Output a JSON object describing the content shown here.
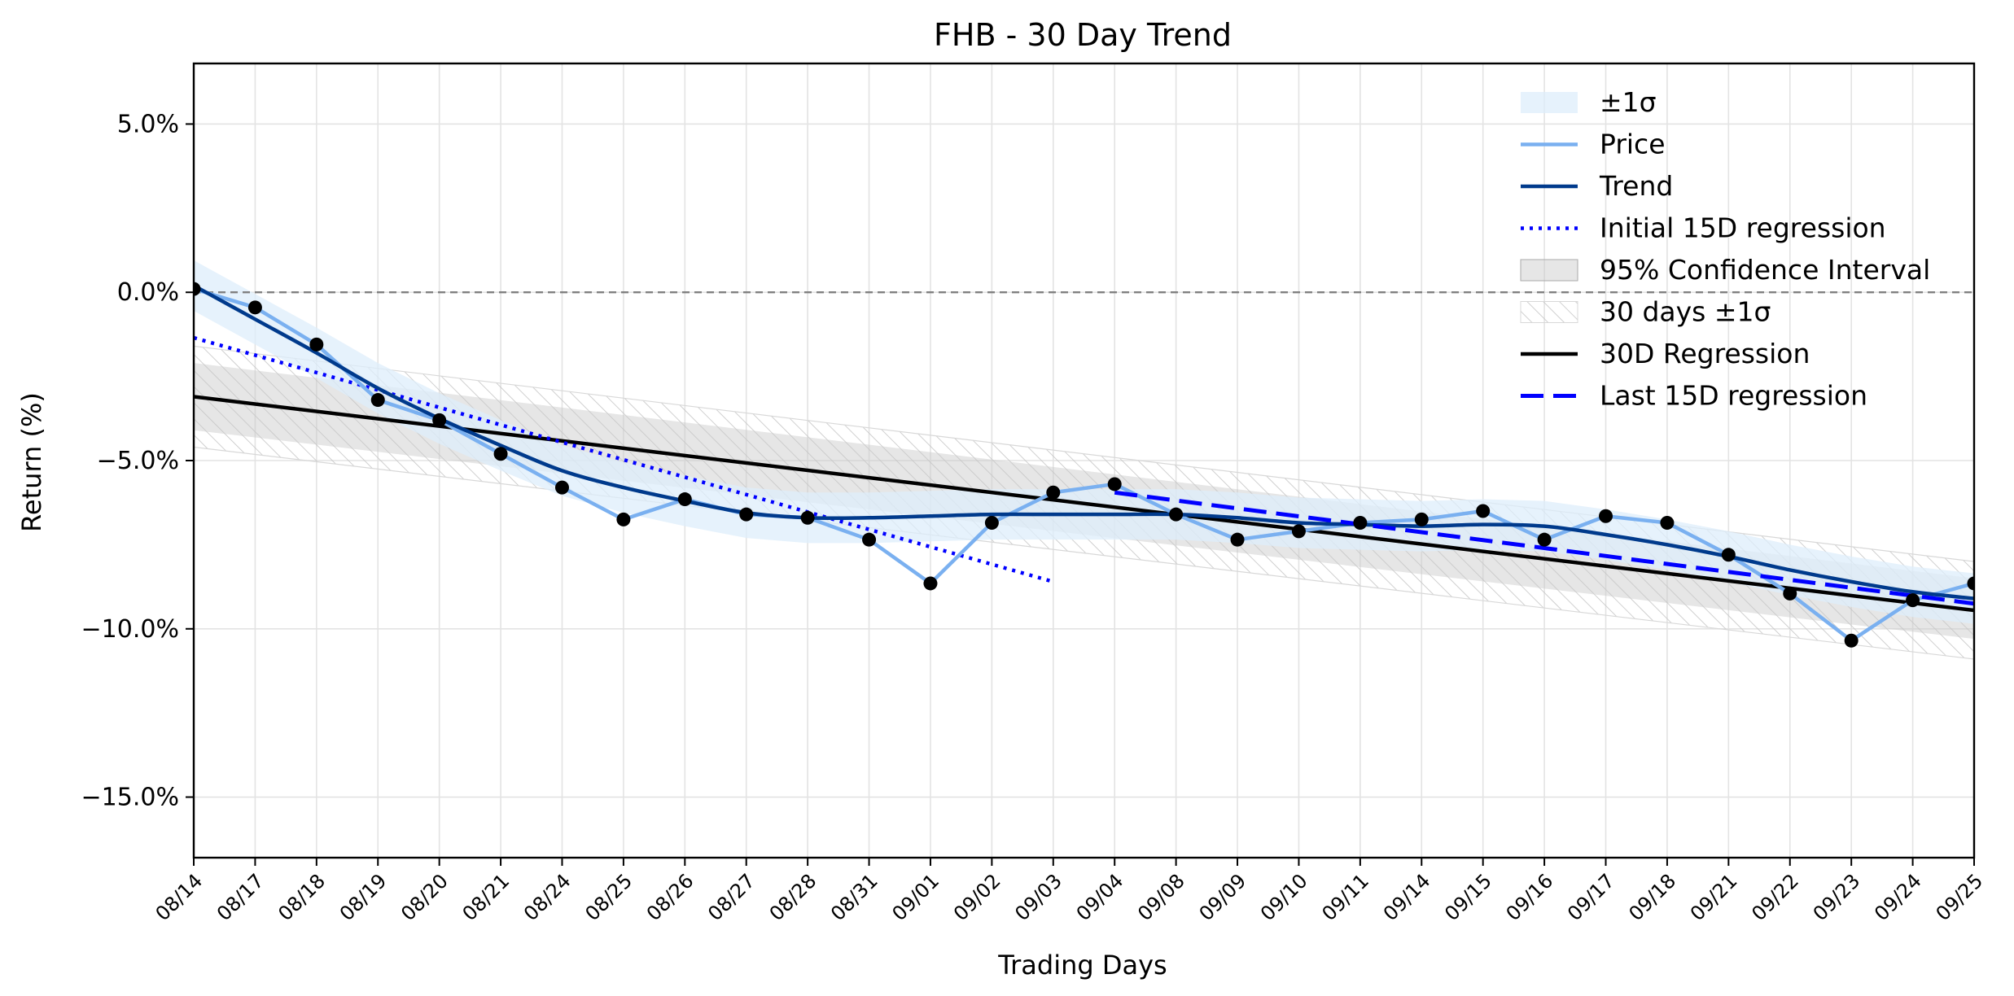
{
  "chart_data": {
    "type": "line",
    "title": "FHB - 30 Day Trend",
    "xlabel": "Trading Days",
    "ylabel": "Return (%)",
    "ylim": [
      -16.8,
      6.8
    ],
    "y_ticks": [
      5,
      0,
      -5,
      -10,
      -15
    ],
    "y_tick_labels": [
      "5.0%",
      "0.0%",
      "−5.0%",
      "−10.0%",
      "−15.0%"
    ],
    "grid": true,
    "legend_position": "top-right",
    "categories": [
      "08/14",
      "08/17",
      "08/18",
      "08/19",
      "08/20",
      "08/21",
      "08/24",
      "08/25",
      "08/26",
      "08/27",
      "08/28",
      "08/31",
      "09/01",
      "09/02",
      "09/03",
      "09/04",
      "09/08",
      "09/09",
      "09/10",
      "09/11",
      "09/14",
      "09/15",
      "09/16",
      "09/17",
      "09/18",
      "09/21",
      "09/22",
      "09/23",
      "09/24",
      "09/25"
    ],
    "reference_line": 0,
    "series": [
      {
        "name": "Price",
        "color": "#7AB0F0",
        "values": [
          0.1,
          -0.45,
          -1.55,
          -3.2,
          -3.8,
          -4.8,
          -5.8,
          -6.75,
          -6.15,
          -6.6,
          -6.7,
          -7.35,
          -8.65,
          -6.85,
          -5.95,
          -5.7,
          -6.6,
          -7.35,
          -7.1,
          -6.85,
          -6.75,
          -6.5,
          -7.35,
          -6.65,
          -6.85,
          -7.8,
          -8.95,
          -10.35,
          -9.15,
          -8.65
        ]
      },
      {
        "name": "Trend",
        "color": "#003A8C",
        "values": [
          0.2,
          -0.8,
          -1.8,
          -2.85,
          -3.75,
          -4.55,
          -5.3,
          -5.8,
          -6.2,
          -6.55,
          -6.7,
          -6.7,
          -6.65,
          -6.6,
          -6.6,
          -6.6,
          -6.6,
          -6.7,
          -6.85,
          -6.9,
          -6.95,
          -6.9,
          -6.95,
          -7.2,
          -7.5,
          -7.85,
          -8.25,
          -8.6,
          -8.9,
          -9.1
        ]
      },
      {
        "name": "±1σ",
        "color": "#DDEEFB",
        "band_half_width": 0.75
      },
      {
        "name": "Initial 15D regression",
        "color": "#0000FF",
        "x_range": [
          0,
          14
        ],
        "y_start": -1.35,
        "y_end": -8.6
      },
      {
        "name": "95% Confidence Interval",
        "color": "#C8C8C8",
        "x_range": [
          0,
          29
        ],
        "lower_start": -4.1,
        "upper_start": -2.1,
        "lower_end": -10.3,
        "upper_end": -8.5
      },
      {
        "name": "30 days ±1σ",
        "color": "#D0D0D0",
        "x_range": [
          0,
          29
        ],
        "lower_start": -4.6,
        "upper_start": -1.6,
        "lower_end": -10.9,
        "upper_end": -8.0
      },
      {
        "name": "30D Regression",
        "color": "#000000",
        "x_range": [
          0,
          29
        ],
        "y_start": -3.1,
        "y_end": -9.45
      },
      {
        "name": "Last 15D regression",
        "color": "#0000FF",
        "x_range": [
          15,
          29
        ],
        "y_start": -5.95,
        "y_end": -9.25
      }
    ]
  }
}
